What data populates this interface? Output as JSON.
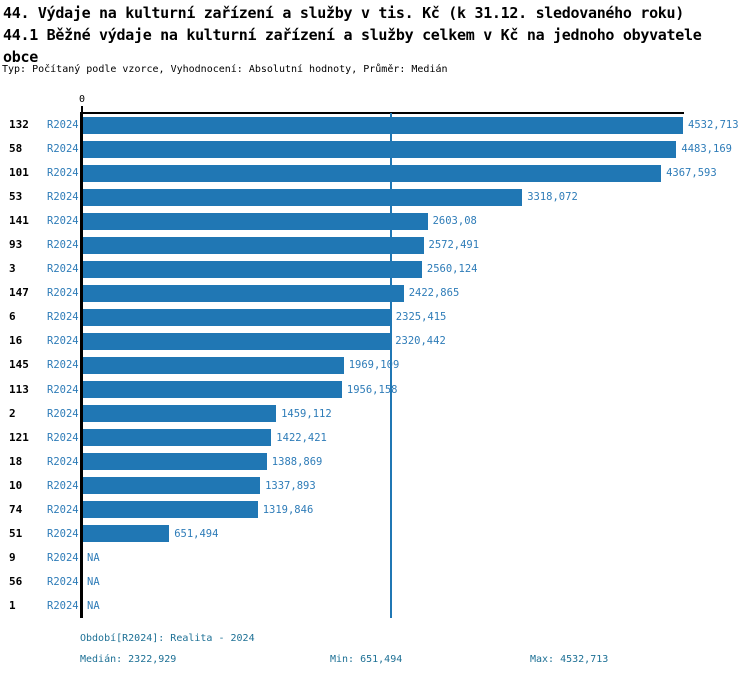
{
  "title": {
    "line1": "44. Výdaje na kulturní zařízení a služby v tis. Kč (k 31.12. sledovaného roku)",
    "line2": "44.1 Běžné výdaje na kulturní zařízení a služby celkem v Kč na jednoho obyvatele",
    "line3": "obce",
    "meta": "Typ: Počítaný podle vzorce, Vyhodnocení: Absolutní hodnoty, Průměr: Medián"
  },
  "axis": {
    "zero": "0"
  },
  "chart_data": {
    "type": "bar",
    "orientation": "horizontal",
    "title": "44.1 Běžné výdaje na kulturní zařízení a služby celkem v Kč na jednoho obyvatele obce",
    "xlabel": "",
    "ylabel": "",
    "xlim": [
      0,
      4532.713
    ],
    "median": 2322.929,
    "min": 651.494,
    "max": 4532.713,
    "na_label": "NA",
    "grid": false,
    "legend_position": "none",
    "rows": [
      {
        "rank": "132",
        "period": "R2024",
        "value": 4532.713,
        "value_label": "4532,713"
      },
      {
        "rank": "58",
        "period": "R2024",
        "value": 4483.169,
        "value_label": "4483,169"
      },
      {
        "rank": "101",
        "period": "R2024",
        "value": 4367.593,
        "value_label": "4367,593"
      },
      {
        "rank": "53",
        "period": "R2024",
        "value": 3318.072,
        "value_label": "3318,072"
      },
      {
        "rank": "141",
        "period": "R2024",
        "value": 2603.08,
        "value_label": "2603,08"
      },
      {
        "rank": "93",
        "period": "R2024",
        "value": 2572.491,
        "value_label": "2572,491"
      },
      {
        "rank": "3",
        "period": "R2024",
        "value": 2560.124,
        "value_label": "2560,124"
      },
      {
        "rank": "147",
        "period": "R2024",
        "value": 2422.865,
        "value_label": "2422,865"
      },
      {
        "rank": "6",
        "period": "R2024",
        "value": 2325.415,
        "value_label": "2325,415"
      },
      {
        "rank": "16",
        "period": "R2024",
        "value": 2320.442,
        "value_label": "2320,442"
      },
      {
        "rank": "145",
        "period": "R2024",
        "value": 1969.109,
        "value_label": "1969,109"
      },
      {
        "rank": "113",
        "period": "R2024",
        "value": 1956.158,
        "value_label": "1956,158"
      },
      {
        "rank": "2",
        "period": "R2024",
        "value": 1459.112,
        "value_label": "1459,112"
      },
      {
        "rank": "121",
        "period": "R2024",
        "value": 1422.421,
        "value_label": "1422,421"
      },
      {
        "rank": "18",
        "period": "R2024",
        "value": 1388.869,
        "value_label": "1388,869"
      },
      {
        "rank": "10",
        "period": "R2024",
        "value": 1337.893,
        "value_label": "1337,893"
      },
      {
        "rank": "74",
        "period": "R2024",
        "value": 1319.846,
        "value_label": "1319,846"
      },
      {
        "rank": "51",
        "period": "R2024",
        "value": 651.494,
        "value_label": "651,494"
      },
      {
        "rank": "9",
        "period": "R2024",
        "value": null,
        "value_label": "NA"
      },
      {
        "rank": "56",
        "period": "R2024",
        "value": null,
        "value_label": "NA"
      },
      {
        "rank": "1",
        "period": "R2024",
        "value": null,
        "value_label": "NA"
      }
    ]
  },
  "footer": {
    "period": "Období[R2024]: Realita - 2024",
    "median": "Medián: 2322,929",
    "min": "Min: 651,494",
    "max": "Max: 4532,713"
  },
  "colors": {
    "bar": "#2077b4",
    "blue_text": "#2e7cb8",
    "median_line": "#2077b4",
    "footer_text": "#1d7095",
    "axis": "#000000"
  }
}
